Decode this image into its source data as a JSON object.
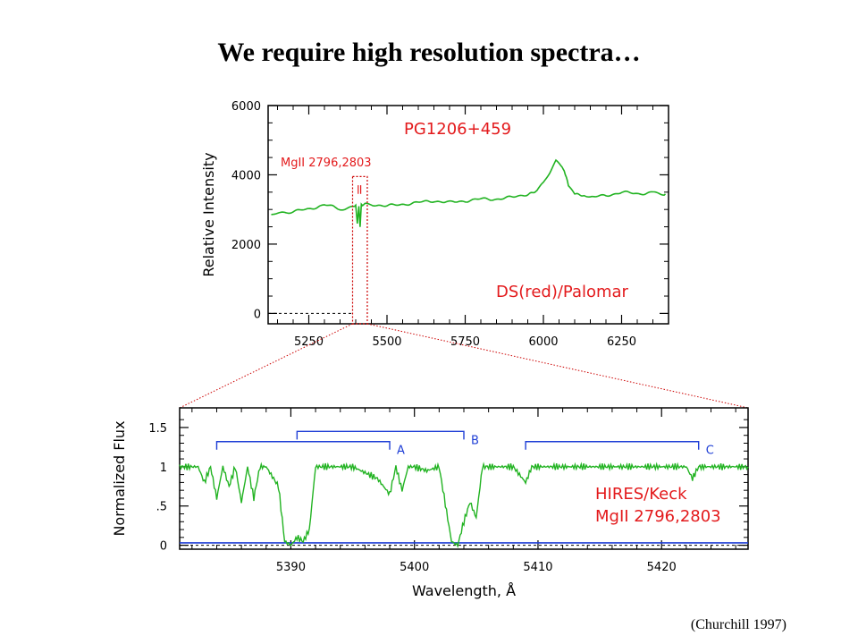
{
  "slide": {
    "title": "We require high resolution spectra…",
    "citation": "(Churchill 1997)"
  },
  "colors": {
    "spectrum": "#22b322",
    "annotation_red": "#e31a1c",
    "annotation_blue": "#1f3fd6",
    "zoom_guide": "#cc0000",
    "error_spectrum": "#1f3fd6"
  },
  "chart_data": [
    {
      "type": "line",
      "instrument": "DS(red)/Palomar",
      "object": "PG1206+459",
      "xlabel": "",
      "ylabel": "Relative Intensity",
      "xlim": [
        5120,
        6400
      ],
      "ylim": [
        -300,
        6000
      ],
      "x_ticks": [
        5250,
        5500,
        5750,
        6000,
        6250
      ],
      "y_ticks": [
        0,
        2000,
        4000,
        6000
      ],
      "grid": false,
      "annotations": [
        {
          "text": "PG1206+459",
          "color": "red"
        },
        {
          "text": "MgII 2796,2803",
          "color": "red"
        },
        {
          "text": "DS(red)/Palomar",
          "color": "red"
        }
      ],
      "zoom_box": {
        "x": [
          5390,
          5437
        ],
        "y": [
          -300,
          3950
        ]
      },
      "series": [
        {
          "color": "green",
          "x": [
            5130,
            5200,
            5250,
            5300,
            5350,
            5390,
            5400,
            5405,
            5410,
            5414,
            5418,
            5422,
            5426,
            5430,
            5450,
            5500,
            5550,
            5600,
            5650,
            5700,
            5750,
            5800,
            5850,
            5900,
            5950,
            5980,
            6000,
            6020,
            6040,
            6060,
            6070,
            6080,
            6100,
            6130,
            6150,
            6200,
            6250,
            6300,
            6350,
            6390
          ],
          "y": [
            2850,
            2950,
            3000,
            3150,
            3000,
            3050,
            3100,
            2600,
            3100,
            2500,
            3150,
            3100,
            3120,
            3150,
            3150,
            3100,
            3150,
            3200,
            3250,
            3200,
            3250,
            3300,
            3300,
            3350,
            3450,
            3550,
            3750,
            4050,
            4400,
            4250,
            4000,
            3700,
            3450,
            3400,
            3350,
            3400,
            3500,
            3450,
            3500,
            3450
          ]
        }
      ]
    },
    {
      "type": "line",
      "instrument": "HIRES/Keck",
      "xlabel": "Wavelength, Å",
      "ylabel": "Normalized Flux",
      "xlim": [
        5381,
        5427
      ],
      "ylim": [
        -0.05,
        1.75
      ],
      "x_ticks": [
        5390,
        5400,
        5410,
        5420
      ],
      "y_ticks": [
        0,
        0.5,
        1,
        1.5
      ],
      "y_tick_labels": [
        "0",
        ".5",
        "1",
        "1.5"
      ],
      "grid": false,
      "annotations": [
        {
          "text": "HIRES/Keck",
          "color": "red"
        },
        {
          "text": "MgII 2796,2803",
          "color": "red"
        }
      ],
      "systems": [
        {
          "label": "A",
          "x_start": 5384,
          "x_end": 5398,
          "level": 1.32
        },
        {
          "label": "B",
          "x_start": 5390.5,
          "x_end": 5404,
          "level": 1.45
        },
        {
          "label": "C",
          "x_start": 5409,
          "x_end": 5423,
          "level": 1.32
        }
      ],
      "series": [
        {
          "name": "",
          "color": "green",
          "x": [
            5381,
            5382.5,
            5383,
            5383.5,
            5384,
            5384.5,
            5385,
            5385.5,
            5386,
            5386.5,
            5387,
            5387.5,
            5388,
            5389,
            5389.5,
            5390,
            5390.5,
            5391,
            5391.5,
            5392,
            5393,
            5395,
            5397,
            5398,
            5398.5,
            5399,
            5399.5,
            5400,
            5401,
            5402,
            5403,
            5403.5,
            5404,
            5404.5,
            5405,
            5405.5,
            5406,
            5407,
            5408,
            5409,
            5409.5,
            5410,
            5412,
            5415,
            5418,
            5420,
            5422,
            5422.5,
            5423,
            5424,
            5426,
            5427
          ],
          "y": [
            1.0,
            1.0,
            0.8,
            1.0,
            0.6,
            1.0,
            0.75,
            1.0,
            0.55,
            1.0,
            0.6,
            1.0,
            1.0,
            0.75,
            0.05,
            0.0,
            0.1,
            0.05,
            0.2,
            1.0,
            1.0,
            1.0,
            0.85,
            0.65,
            1.0,
            0.7,
            1.0,
            1.0,
            0.95,
            1.0,
            0.05,
            0.0,
            0.3,
            0.55,
            0.35,
            1.0,
            1.0,
            1.0,
            1.0,
            0.8,
            1.0,
            1.0,
            1.0,
            1.0,
            1.0,
            1.0,
            1.0,
            0.85,
            1.0,
            1.0,
            1.0,
            1.0
          ]
        },
        {
          "name": "",
          "color": "blue",
          "x": [
            5381,
            5427
          ],
          "y": [
            0.03,
            0.03
          ]
        }
      ]
    }
  ]
}
